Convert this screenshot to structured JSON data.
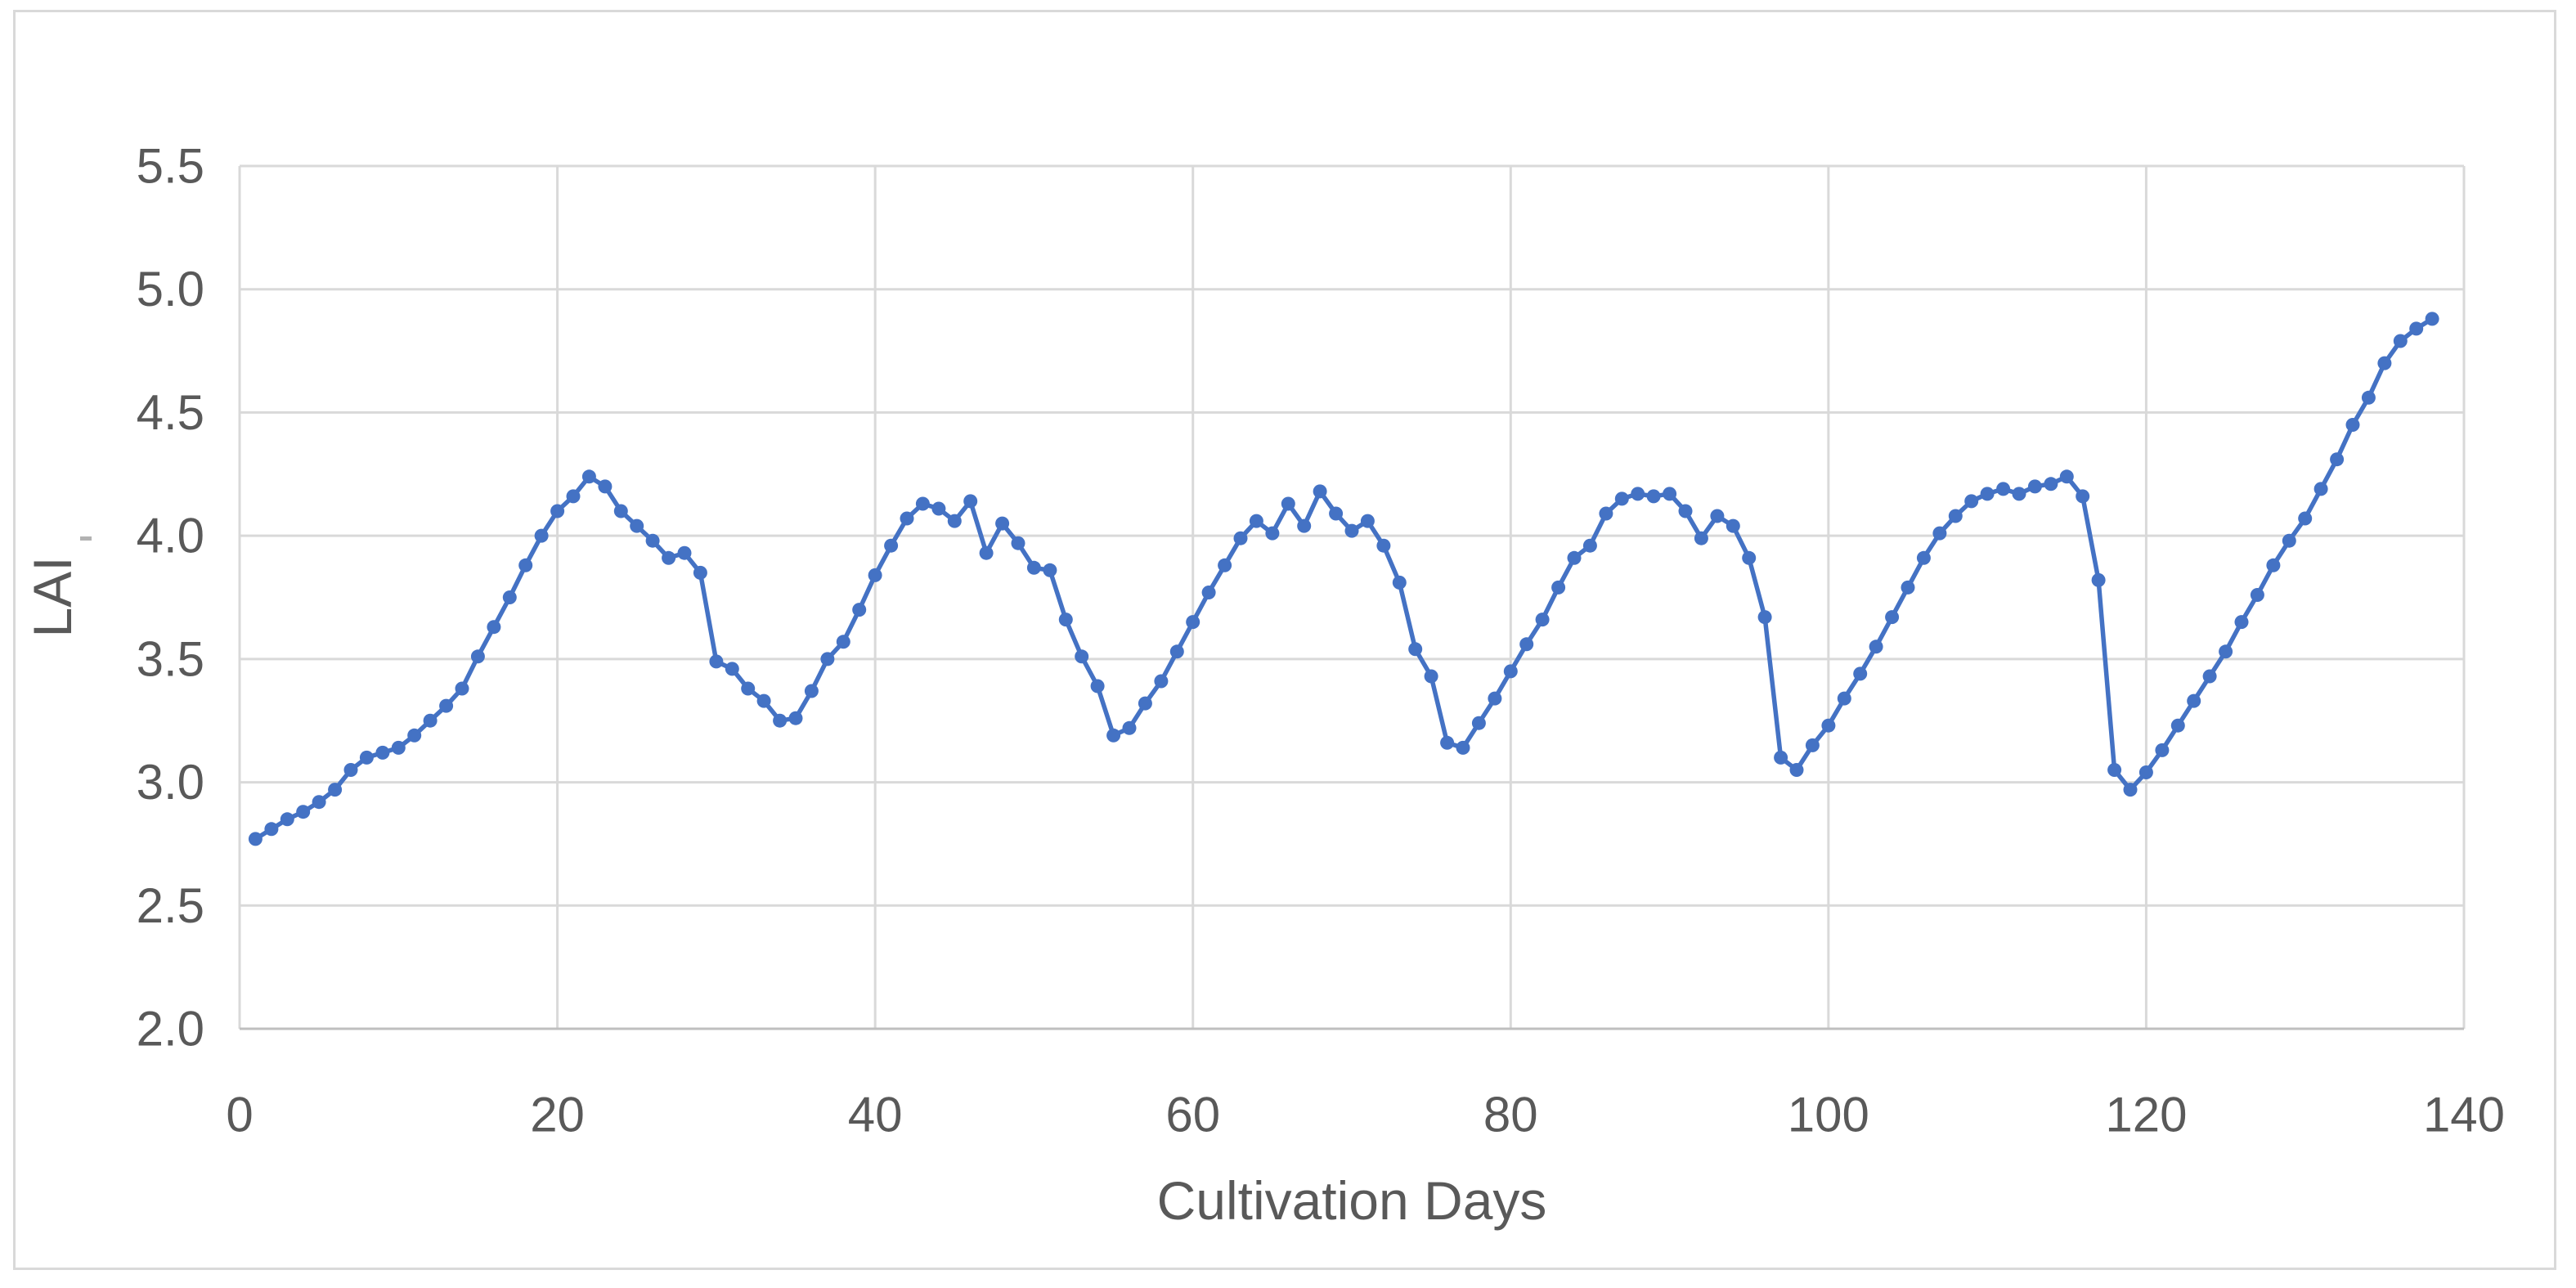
{
  "chart_data": {
    "type": "line",
    "title": "",
    "xlabel": "Cultivation Days",
    "ylabel": "LAI",
    "series_name": "LAI",
    "x": [
      1,
      2,
      3,
      4,
      5,
      6,
      7,
      8,
      9,
      10,
      11,
      12,
      13,
      14,
      15,
      16,
      17,
      18,
      19,
      20,
      21,
      22,
      23,
      24,
      25,
      26,
      27,
      28,
      29,
      30,
      31,
      32,
      33,
      34,
      35,
      36,
      37,
      38,
      39,
      40,
      41,
      42,
      43,
      44,
      45,
      46,
      47,
      48,
      49,
      50,
      51,
      52,
      53,
      54,
      55,
      56,
      57,
      58,
      59,
      60,
      61,
      62,
      63,
      64,
      65,
      66,
      67,
      68,
      69,
      70,
      71,
      72,
      73,
      74,
      75,
      76,
      77,
      78,
      79,
      80,
      81,
      82,
      83,
      84,
      85,
      86,
      87,
      88,
      89,
      90,
      91,
      92,
      93,
      94,
      95,
      96,
      97,
      98,
      99,
      100,
      101,
      102,
      103,
      104,
      105,
      106,
      107,
      108,
      109,
      110,
      111,
      112,
      113,
      114,
      115,
      116,
      117,
      118,
      119,
      120,
      121,
      122,
      123,
      124,
      125,
      126,
      127,
      128,
      129,
      130,
      131,
      132,
      133,
      134,
      135,
      136,
      137,
      138
    ],
    "values": [
      2.77,
      2.81,
      2.85,
      2.88,
      2.92,
      2.97,
      3.05,
      3.1,
      3.12,
      3.14,
      3.19,
      3.25,
      3.31,
      3.38,
      3.51,
      3.63,
      3.75,
      3.88,
      4.0,
      4.1,
      4.16,
      4.24,
      4.2,
      4.1,
      4.04,
      3.98,
      3.91,
      3.93,
      3.85,
      3.49,
      3.46,
      3.38,
      3.33,
      3.25,
      3.26,
      3.37,
      3.5,
      3.57,
      3.7,
      3.84,
      3.96,
      4.07,
      4.13,
      4.11,
      4.06,
      4.14,
      3.93,
      4.05,
      3.97,
      3.87,
      3.86,
      3.66,
      3.51,
      3.39,
      3.19,
      3.22,
      3.32,
      3.41,
      3.53,
      3.65,
      3.77,
      3.88,
      3.99,
      4.06,
      4.01,
      4.13,
      4.04,
      4.18,
      4.09,
      4.02,
      4.06,
      3.96,
      3.81,
      3.54,
      3.43,
      3.16,
      3.14,
      3.24,
      3.34,
      3.45,
      3.56,
      3.66,
      3.79,
      3.91,
      3.96,
      4.09,
      4.15,
      4.17,
      4.16,
      4.17,
      4.1,
      3.99,
      4.08,
      4.04,
      3.91,
      3.67,
      3.1,
      3.05,
      3.15,
      3.23,
      3.34,
      3.44,
      3.55,
      3.67,
      3.79,
      3.91,
      4.01,
      4.08,
      4.14,
      4.17,
      4.19,
      4.17,
      4.2,
      4.21,
      4.24,
      4.16,
      3.82,
      3.05,
      2.97,
      3.04,
      3.13,
      3.23,
      3.33,
      3.43,
      3.53,
      3.65,
      3.76,
      3.88,
      3.98,
      4.07,
      4.19,
      4.31,
      4.45,
      4.56,
      4.7,
      4.79,
      4.84,
      4.88
    ],
    "xlim": [
      0,
      140
    ],
    "ylim": [
      2.0,
      5.5
    ],
    "x_ticks": [
      0,
      20,
      40,
      60,
      80,
      100,
      120,
      140
    ],
    "y_ticks": [
      2.0,
      2.5,
      3.0,
      3.5,
      4.0,
      4.5,
      5.0,
      5.5
    ],
    "grid": true,
    "legend_position": "none",
    "marker": "circle",
    "colors": {
      "series": "#4472C4",
      "grid": "#D9D9D9",
      "axis": "#BFBFBF",
      "text": "#595959",
      "background": "#FFFFFF",
      "border": "#D9D9D9"
    }
  }
}
